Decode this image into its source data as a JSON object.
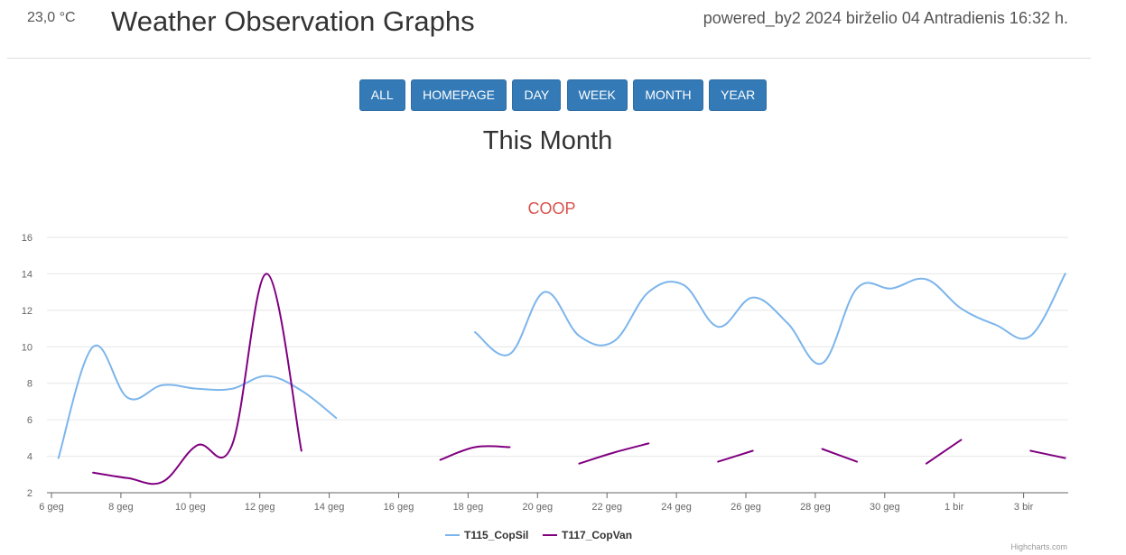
{
  "header": {
    "temperature": "23,0 °C",
    "title": "Weather Observation Graphs",
    "powered": "powered_by2 2024 birželio 04 Antradienis 16:32 h."
  },
  "nav": {
    "all": "ALL",
    "homepage": "HOMEPAGE",
    "day": "DAY",
    "week": "WEEK",
    "month": "MONTH",
    "year": "YEAR"
  },
  "page": {
    "subtitle": "This Month"
  },
  "credits": "Highcharts.com",
  "colors": {
    "series1": "#7cb5ec",
    "series2": "#800080",
    "button": "#337ab7",
    "title": "#d9534f"
  },
  "chart_data": {
    "type": "line",
    "title": "COOP",
    "ylim": [
      2,
      16
    ],
    "yticks": [
      2,
      4,
      6,
      8,
      10,
      12,
      14,
      16
    ],
    "xlim": [
      6,
      35
    ],
    "xticks": [
      {
        "x": 6,
        "label": "6 geg"
      },
      {
        "x": 8,
        "label": "8 geg"
      },
      {
        "x": 10,
        "label": "10 geg"
      },
      {
        "x": 12,
        "label": "12 geg"
      },
      {
        "x": 14,
        "label": "14 geg"
      },
      {
        "x": 16,
        "label": "16 geg"
      },
      {
        "x": 18,
        "label": "18 geg"
      },
      {
        "x": 20,
        "label": "20 geg"
      },
      {
        "x": 22,
        "label": "22 geg"
      },
      {
        "x": 24,
        "label": "24 geg"
      },
      {
        "x": 26,
        "label": "26 geg"
      },
      {
        "x": 28,
        "label": "28 geg"
      },
      {
        "x": 30,
        "label": "30 geg"
      },
      {
        "x": 32,
        "label": "1 bir"
      },
      {
        "x": 34,
        "label": "3 bir"
      }
    ],
    "grid": true,
    "legend": "bottom-center",
    "series": [
      {
        "name": "T115_CopSil",
        "segments": [
          [
            [
              6.2,
              3.9
            ],
            [
              7.2,
              10.0
            ],
            [
              8.2,
              7.2
            ],
            [
              9.2,
              7.9
            ],
            [
              10.2,
              7.7
            ],
            [
              11.2,
              7.7
            ],
            [
              12.2,
              8.4
            ],
            [
              13.2,
              7.6
            ],
            [
              14.2,
              6.1
            ]
          ],
          [
            [
              18.2,
              10.8
            ],
            [
              19.2,
              9.6
            ],
            [
              20.2,
              13.0
            ],
            [
              21.2,
              10.6
            ],
            [
              22.2,
              10.3
            ],
            [
              23.2,
              13.0
            ],
            [
              24.2,
              13.4
            ],
            [
              25.2,
              11.1
            ],
            [
              26.2,
              12.7
            ],
            [
              27.2,
              11.3
            ],
            [
              28.2,
              9.1
            ],
            [
              29.2,
              13.2
            ],
            [
              30.2,
              13.2
            ],
            [
              31.2,
              13.7
            ],
            [
              32.2,
              12.1
            ],
            [
              33.2,
              11.2
            ],
            [
              34.2,
              10.6
            ],
            [
              35.2,
              14.0
            ]
          ]
        ]
      },
      {
        "name": "T117_CopVan",
        "segments": [
          [
            [
              7.2,
              3.1
            ],
            [
              8.2,
              2.8
            ],
            [
              9.2,
              2.6
            ],
            [
              10.2,
              4.6
            ],
            [
              11.2,
              4.6
            ],
            [
              12.2,
              14.0
            ],
            [
              13.2,
              4.3
            ]
          ],
          [
            [
              17.2,
              3.8
            ],
            [
              18.2,
              4.5
            ],
            [
              19.2,
              4.5
            ]
          ],
          [
            [
              21.2,
              3.6
            ],
            [
              22.2,
              4.2
            ],
            [
              23.2,
              4.7
            ]
          ],
          [
            [
              25.2,
              3.7
            ],
            [
              26.2,
              4.3
            ]
          ],
          [
            [
              28.2,
              4.4
            ],
            [
              29.2,
              3.7
            ]
          ],
          [
            [
              31.2,
              3.6
            ],
            [
              32.2,
              4.9
            ]
          ],
          [
            [
              34.2,
              4.3
            ],
            [
              35.2,
              3.9
            ]
          ]
        ]
      }
    ]
  }
}
